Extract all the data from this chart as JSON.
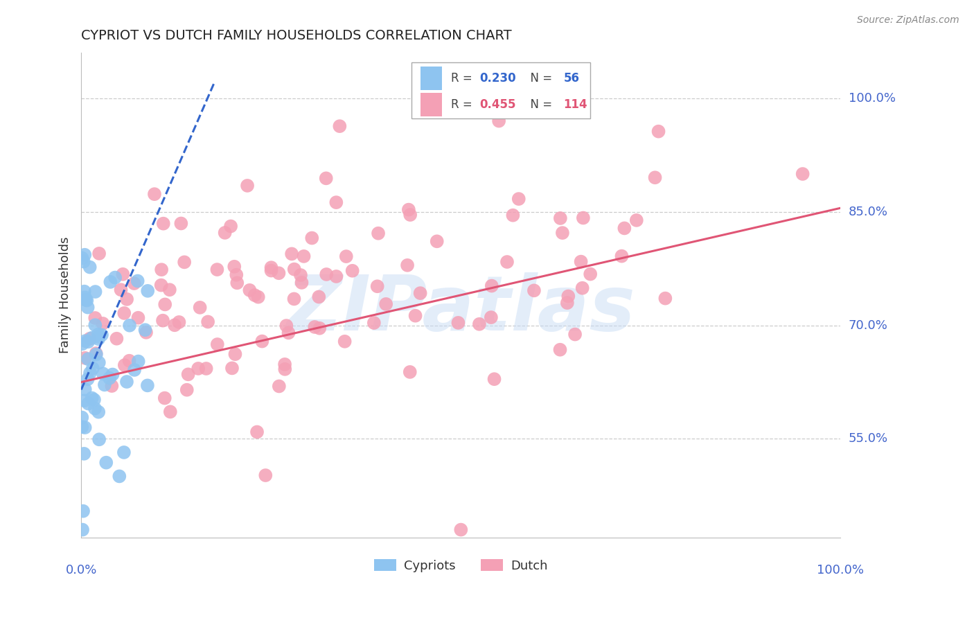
{
  "title": "CYPRIOT VS DUTCH FAMILY HOUSEHOLDS CORRELATION CHART",
  "source": "Source: ZipAtlas.com",
  "ylabel": "Family Households",
  "watermark": "ZIPatlas",
  "legend_cypriot_R": "0.230",
  "legend_cypriot_N": "56",
  "legend_dutch_R": "0.455",
  "legend_dutch_N": "114",
  "ytick_labels": [
    "55.0%",
    "70.0%",
    "85.0%",
    "100.0%"
  ],
  "ytick_values": [
    0.55,
    0.7,
    0.85,
    1.0
  ],
  "xlim": [
    0.0,
    1.0
  ],
  "ylim": [
    0.42,
    1.06
  ],
  "cypriot_color": "#8ec4f0",
  "dutch_color": "#f4a0b5",
  "cypriot_line_color": "#3366cc",
  "dutch_line_color": "#e05575",
  "background_color": "#ffffff",
  "grid_color": "#cccccc",
  "axis_label_color": "#4466cc",
  "title_color": "#222222",
  "cypriot_line_x": [
    0.0,
    0.175
  ],
  "cypriot_line_y": [
    0.615,
    1.02
  ],
  "dutch_line_x": [
    0.0,
    1.0
  ],
  "dutch_line_y": [
    0.625,
    0.855
  ]
}
